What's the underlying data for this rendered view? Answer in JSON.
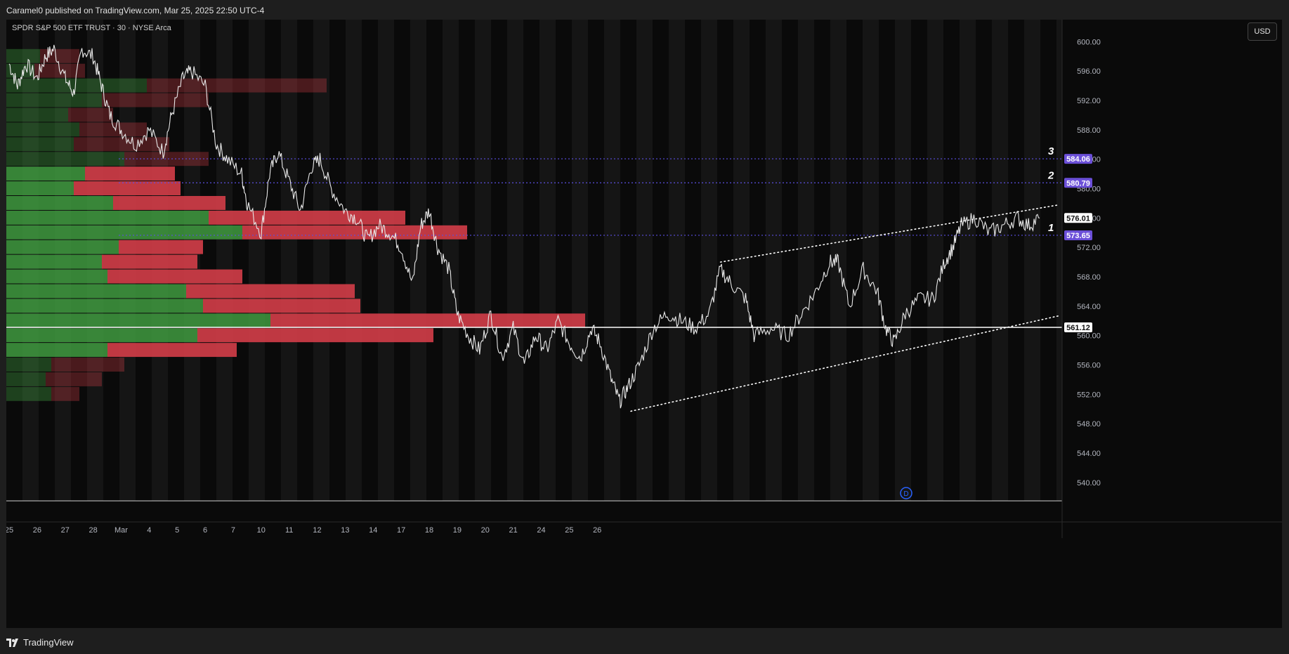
{
  "header": {
    "published": "Caramel0 published on TradingView.com, Mar 25, 2025 22:50 UTC-4",
    "symbol": "SPDR S&P 500 ETF TRUST · 30 · NYSE Arca",
    "currency": "USD"
  },
  "footer": {
    "brand": "TradingView"
  },
  "colors": {
    "background": "#0a0a0a",
    "band": "#151515",
    "price_line": "#e8e8e8",
    "level_line": "#5b4fe0",
    "level_badge": "#6b4fd8",
    "vp_buy": "#3f9a3f",
    "vp_sell": "#d33d48"
  },
  "chart_data": {
    "type": "line",
    "series": [
      {
        "points": [
          [
            0,
            597
          ],
          [
            0.3,
            594
          ],
          [
            0.6,
            597
          ],
          [
            1,
            595
          ],
          [
            1.3,
            598
          ],
          [
            1.6,
            599
          ],
          [
            2,
            595
          ],
          [
            2.3,
            593
          ],
          [
            2.6,
            599
          ],
          [
            3,
            598
          ],
          [
            3.3,
            594
          ],
          [
            3.6,
            590
          ],
          [
            4,
            588
          ],
          [
            4.5,
            586
          ],
          [
            5,
            588
          ],
          [
            5.5,
            585
          ],
          [
            5.8,
            590
          ],
          [
            6.2,
            595
          ],
          [
            6.5,
            596
          ],
          [
            7,
            594
          ],
          [
            7.4,
            586
          ],
          [
            7.8,
            584
          ],
          [
            8.3,
            582
          ],
          [
            8.5,
            578
          ],
          [
            9,
            574
          ],
          [
            9.3,
            582
          ],
          [
            9.6,
            585
          ],
          [
            10,
            581
          ],
          [
            10.4,
            577
          ],
          [
            10.8,
            583
          ],
          [
            11.1,
            584
          ],
          [
            11.5,
            580
          ],
          [
            12,
            577
          ],
          [
            12.4,
            576
          ],
          [
            12.8,
            573
          ],
          [
            13.2,
            575
          ],
          [
            13.6,
            574
          ],
          [
            14,
            572
          ],
          [
            14.4,
            567
          ],
          [
            14.7,
            575
          ],
          [
            15,
            577
          ],
          [
            15.3,
            572
          ],
          [
            15.7,
            569
          ],
          [
            16,
            563
          ],
          [
            16.4,
            560
          ],
          [
            16.8,
            558
          ],
          [
            17.2,
            563
          ],
          [
            17.6,
            557
          ],
          [
            18,
            561
          ],
          [
            18.4,
            556
          ],
          [
            18.8,
            560
          ],
          [
            19.2,
            558
          ],
          [
            19.6,
            562
          ],
          [
            20,
            559
          ],
          [
            20.4,
            557
          ],
          [
            20.8,
            561
          ],
          [
            21.1,
            559
          ],
          [
            21.5,
            554
          ],
          [
            21.8,
            551
          ],
          [
            22.1,
            553
          ],
          [
            22.5,
            556
          ],
          [
            23,
            561
          ],
          [
            23.5,
            563
          ],
          [
            24,
            562
          ],
          [
            24.5,
            561
          ],
          [
            25,
            563
          ],
          [
            25.4,
            569
          ],
          [
            25.8,
            567
          ],
          [
            26.3,
            565
          ],
          [
            26.6,
            560
          ],
          [
            27.2,
            561
          ],
          [
            27.8,
            560
          ],
          [
            28.3,
            563
          ],
          [
            28.8,
            566
          ],
          [
            29.3,
            570
          ],
          [
            29.6,
            570
          ],
          [
            30,
            564
          ],
          [
            30.5,
            569
          ],
          [
            31,
            566
          ],
          [
            31.3,
            561
          ],
          [
            31.6,
            559
          ],
          [
            32,
            563
          ],
          [
            32.5,
            565
          ],
          [
            33,
            565
          ],
          [
            33.4,
            570
          ],
          [
            33.7,
            572
          ],
          [
            34,
            575
          ],
          [
            34.5,
            576
          ],
          [
            35,
            574
          ],
          [
            35.5,
            575
          ],
          [
            36,
            576
          ],
          [
            36.4,
            575
          ],
          [
            36.8,
            576
          ]
        ]
      }
    ],
    "x_tick_labels": [
      "25",
      "26",
      "27",
      "28",
      "Mar",
      "4",
      "5",
      "6",
      "7",
      "10",
      "11",
      "12",
      "13",
      "14",
      "17",
      "18",
      "19",
      "20",
      "21",
      "24",
      "25",
      "26"
    ],
    "y_ticks": [
      540,
      544,
      548,
      552,
      556,
      560,
      564,
      568,
      572,
      576,
      580,
      584,
      588,
      592,
      596,
      600
    ],
    "ylim": [
      537.5,
      603
    ],
    "xlim": [
      -0.1,
      37.6
    ],
    "last_price": "576.01",
    "price_levels": [
      {
        "value": 584.06,
        "label": "584.06",
        "marker": "3"
      },
      {
        "value": 580.79,
        "label": "580.79",
        "marker": "2"
      },
      {
        "value": 573.65,
        "label": "573.65",
        "marker": "1"
      }
    ],
    "poc": {
      "value": 561.12,
      "label": "561.12"
    },
    "trendlines": [
      {
        "style": "dotted",
        "from": [
          25.4,
          570
        ],
        "to": [
          37.5,
          577.8
        ]
      },
      {
        "style": "dotted",
        "from": [
          22.2,
          549.7
        ],
        "to": [
          37.5,
          562.7
        ]
      },
      {
        "style": "solid",
        "from": [
          25.4,
          570
        ],
        "to": [
          22.2,
          549.7
        ],
        "hidden": true
      }
    ],
    "volume_profile": {
      "bin_size": 2,
      "bins": [
        {
          "price": 598,
          "buy": 0.06,
          "sell": 0.07
        },
        {
          "price": 596,
          "buy": 0.05,
          "sell": 0.09
        },
        {
          "price": 594,
          "buy": 0.25,
          "sell": 0.32
        },
        {
          "price": 592,
          "buy": 0.17,
          "sell": 0.19
        },
        {
          "price": 590,
          "buy": 0.11,
          "sell": 0.08
        },
        {
          "price": 588,
          "buy": 0.13,
          "sell": 0.12
        },
        {
          "price": 586,
          "buy": 0.12,
          "sell": 0.17
        },
        {
          "price": 584,
          "buy": 0.21,
          "sell": 0.15
        },
        {
          "price": 582,
          "buy": 0.14,
          "sell": 0.16
        },
        {
          "price": 580,
          "buy": 0.12,
          "sell": 0.19
        },
        {
          "price": 578,
          "buy": 0.19,
          "sell": 0.2
        },
        {
          "price": 576,
          "buy": 0.36,
          "sell": 0.35
        },
        {
          "price": 574,
          "buy": 0.42,
          "sell": 0.4
        },
        {
          "price": 572,
          "buy": 0.2,
          "sell": 0.15
        },
        {
          "price": 570,
          "buy": 0.17,
          "sell": 0.17
        },
        {
          "price": 568,
          "buy": 0.18,
          "sell": 0.24
        },
        {
          "price": 566,
          "buy": 0.32,
          "sell": 0.3
        },
        {
          "price": 564,
          "buy": 0.35,
          "sell": 0.28
        },
        {
          "price": 562,
          "buy": 0.47,
          "sell": 0.56
        },
        {
          "price": 560,
          "buy": 0.34,
          "sell": 0.42
        },
        {
          "price": 558,
          "buy": 0.18,
          "sell": 0.23
        },
        {
          "price": 556,
          "buy": 0.08,
          "sell": 0.13
        },
        {
          "price": 554,
          "buy": 0.07,
          "sell": 0.1
        },
        {
          "price": 552,
          "buy": 0.08,
          "sell": 0.05
        }
      ]
    },
    "annotation": "D"
  }
}
